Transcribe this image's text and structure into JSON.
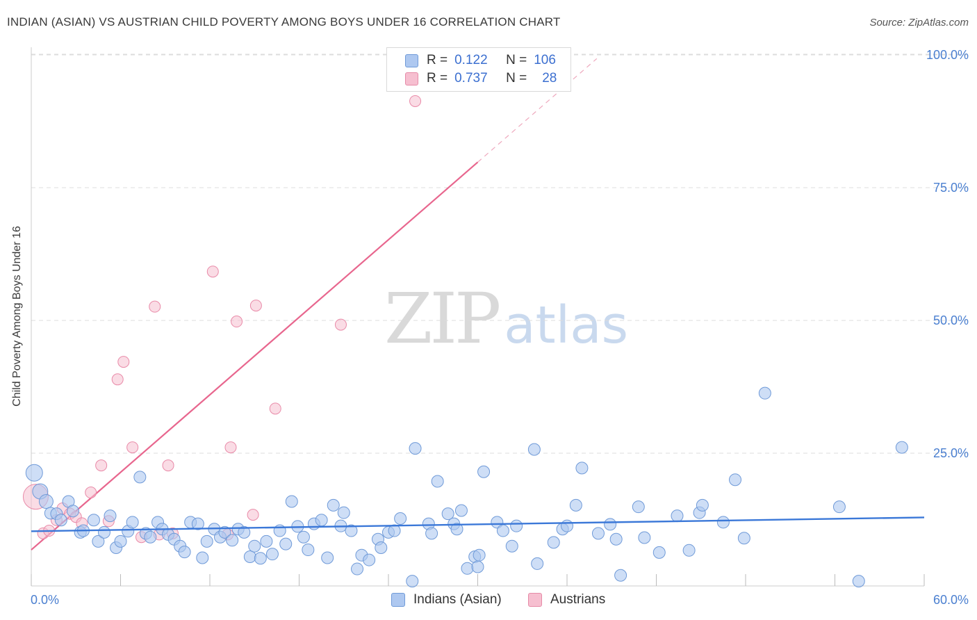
{
  "title": "INDIAN (ASIAN) VS AUSTRIAN CHILD POVERTY AMONG BOYS UNDER 16 CORRELATION CHART",
  "source": "Source: ZipAtlas.com",
  "watermark": {
    "part1": "ZIP",
    "part2": "atlas"
  },
  "colors": {
    "blue": "#3b78d8",
    "blue_fill": "#aec8f0",
    "pink": "#e8668e",
    "pink_fill": "#f6bfd0",
    "tick_text": "#4a7fd0",
    "grid": "#dcdcdc"
  },
  "legend_top": [
    {
      "name": "Indians (Asian)",
      "r_label": "R =",
      "r_value": "0.122",
      "n_label": "N =",
      "n_value": "106"
    },
    {
      "name": "Austrians",
      "r_label": "R =",
      "r_value": "0.737",
      "n_label": "N =",
      "n_value": "28"
    }
  ],
  "chart_data": {
    "type": "scatter",
    "title": "INDIAN (ASIAN) VS AUSTRIAN CHILD POVERTY AMONG BOYS UNDER 16 CORRELATION CHART",
    "xlabel": "",
    "ylabel": "Child Poverty Among Boys Under 16",
    "xlim": [
      0,
      60
    ],
    "ylim": [
      0,
      100
    ],
    "x_tick_labels": [
      "0.0%",
      "60.0%"
    ],
    "y_ticks": [
      25,
      50,
      75,
      100
    ],
    "y_tick_labels": [
      "25.0%",
      "50.0%",
      "75.0%",
      "100.0%"
    ],
    "grid": true,
    "legend_position": "bottom-center",
    "series": [
      {
        "name": "Indians (Asian)",
        "color": "#3b78d8",
        "trend": {
          "x0": 0,
          "y0": 10.3,
          "x1": 60,
          "y1": 12.9
        },
        "points": [
          [
            0.2,
            21.3
          ],
          [
            0.6,
            17.8
          ],
          [
            1.0,
            15.9
          ],
          [
            1.3,
            13.7
          ],
          [
            1.7,
            13.6
          ],
          [
            2.0,
            12.4
          ],
          [
            2.5,
            15.9
          ],
          [
            2.8,
            14.1
          ],
          [
            3.3,
            10.1
          ],
          [
            3.5,
            10.4
          ],
          [
            4.2,
            12.4
          ],
          [
            4.5,
            8.4
          ],
          [
            4.9,
            10.1
          ],
          [
            5.3,
            13.2
          ],
          [
            5.7,
            7.2
          ],
          [
            6.0,
            8.4
          ],
          [
            6.5,
            10.3
          ],
          [
            6.8,
            12.0
          ],
          [
            7.3,
            20.5
          ],
          [
            7.7,
            9.9
          ],
          [
            8.0,
            9.2
          ],
          [
            8.5,
            12.0
          ],
          [
            8.8,
            10.7
          ],
          [
            9.2,
            9.7
          ],
          [
            9.6,
            8.8
          ],
          [
            10.0,
            7.5
          ],
          [
            10.3,
            6.4
          ],
          [
            10.7,
            12.0
          ],
          [
            11.2,
            11.7
          ],
          [
            11.5,
            5.3
          ],
          [
            11.8,
            8.4
          ],
          [
            12.3,
            10.7
          ],
          [
            12.7,
            9.2
          ],
          [
            13.0,
            10.1
          ],
          [
            13.5,
            8.6
          ],
          [
            13.9,
            10.7
          ],
          [
            14.3,
            10.1
          ],
          [
            14.7,
            5.5
          ],
          [
            15.0,
            7.5
          ],
          [
            15.4,
            5.2
          ],
          [
            15.8,
            8.4
          ],
          [
            16.2,
            6.0
          ],
          [
            16.7,
            10.4
          ],
          [
            17.1,
            7.9
          ],
          [
            17.5,
            15.9
          ],
          [
            17.9,
            11.2
          ],
          [
            18.3,
            9.2
          ],
          [
            18.6,
            6.8
          ],
          [
            19.0,
            11.7
          ],
          [
            19.5,
            12.4
          ],
          [
            19.9,
            5.3
          ],
          [
            20.3,
            15.2
          ],
          [
            20.8,
            11.3
          ],
          [
            21.0,
            13.8
          ],
          [
            21.5,
            10.4
          ],
          [
            21.9,
            3.2
          ],
          [
            22.2,
            5.8
          ],
          [
            22.7,
            4.9
          ],
          [
            23.3,
            8.8
          ],
          [
            23.5,
            7.2
          ],
          [
            24.0,
            10.1
          ],
          [
            24.4,
            10.4
          ],
          [
            24.8,
            12.7
          ],
          [
            25.6,
            0.9
          ],
          [
            25.8,
            25.9
          ],
          [
            26.7,
            11.7
          ],
          [
            26.9,
            9.9
          ],
          [
            27.3,
            19.7
          ],
          [
            28.0,
            13.6
          ],
          [
            28.4,
            11.7
          ],
          [
            28.6,
            10.7
          ],
          [
            28.9,
            14.2
          ],
          [
            29.3,
            3.3
          ],
          [
            29.8,
            5.5
          ],
          [
            30.0,
            3.6
          ],
          [
            30.4,
            21.5
          ],
          [
            31.3,
            12.0
          ],
          [
            31.7,
            10.4
          ],
          [
            32.3,
            7.5
          ],
          [
            32.6,
            11.3
          ],
          [
            33.8,
            25.7
          ],
          [
            34.0,
            4.2
          ],
          [
            35.1,
            8.2
          ],
          [
            35.7,
            10.7
          ],
          [
            36.0,
            11.3
          ],
          [
            36.6,
            15.2
          ],
          [
            37.0,
            22.2
          ],
          [
            38.1,
            9.9
          ],
          [
            38.9,
            11.6
          ],
          [
            39.3,
            8.8
          ],
          [
            39.6,
            2.0
          ],
          [
            40.8,
            14.9
          ],
          [
            41.2,
            9.1
          ],
          [
            42.2,
            6.3
          ],
          [
            43.4,
            13.2
          ],
          [
            44.2,
            6.7
          ],
          [
            44.9,
            13.8
          ],
          [
            45.1,
            15.2
          ],
          [
            46.5,
            12.0
          ],
          [
            47.3,
            20.0
          ],
          [
            47.9,
            9.0
          ],
          [
            49.3,
            36.3
          ],
          [
            54.3,
            14.9
          ],
          [
            55.6,
            0.9
          ],
          [
            58.5,
            26.1
          ],
          [
            30.1,
            5.8
          ]
        ]
      },
      {
        "name": "Austrians",
        "color": "#e8668e",
        "trend": {
          "x0": 0,
          "y0": 6.8,
          "x1": 30,
          "y1": 79.8
        },
        "trend_dashed_to": {
          "x": 38,
          "y": 99.3
        },
        "points": [
          [
            0.3,
            16.8
          ],
          [
            0.8,
            9.9
          ],
          [
            1.2,
            10.4
          ],
          [
            1.7,
            12.4
          ],
          [
            2.1,
            14.6
          ],
          [
            2.6,
            13.6
          ],
          [
            3.0,
            13.0
          ],
          [
            3.4,
            11.8
          ],
          [
            4.0,
            17.6
          ],
          [
            4.7,
            22.7
          ],
          [
            5.2,
            12.2
          ],
          [
            5.8,
            38.9
          ],
          [
            6.2,
            42.2
          ],
          [
            6.8,
            26.1
          ],
          [
            7.4,
            9.2
          ],
          [
            8.3,
            52.6
          ],
          [
            8.6,
            9.7
          ],
          [
            9.2,
            22.7
          ],
          [
            9.5,
            9.9
          ],
          [
            12.2,
            59.2
          ],
          [
            13.2,
            9.7
          ],
          [
            13.4,
            26.1
          ],
          [
            13.8,
            49.8
          ],
          [
            15.1,
            52.8
          ],
          [
            16.4,
            33.4
          ],
          [
            20.8,
            49.2
          ],
          [
            25.8,
            91.3
          ],
          [
            14.9,
            13.4
          ]
        ]
      }
    ]
  }
}
